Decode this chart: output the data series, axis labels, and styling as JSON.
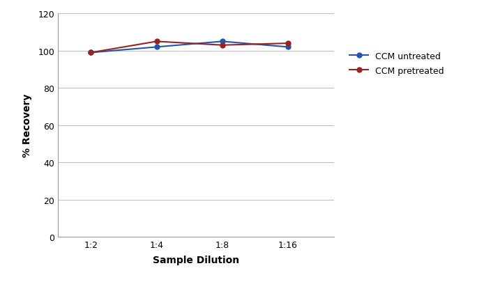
{
  "x_labels": [
    "1:2",
    "1:4",
    "1:8",
    "1:16"
  ],
  "x_values": [
    1,
    2,
    3,
    4
  ],
  "ccm_untreated": [
    99,
    102,
    105,
    102
  ],
  "ccm_pretreated": [
    99,
    105,
    103,
    104
  ],
  "line_color_untreated": "#2255AA",
  "line_color_pretreated": "#992222",
  "ylabel": "% Recovery",
  "xlabel": "Sample Dilution",
  "ylim": [
    0,
    120
  ],
  "yticks": [
    0,
    20,
    40,
    60,
    80,
    100,
    120
  ],
  "legend_labels": [
    "CCM untreated",
    "CCM pretreated"
  ],
  "background_color": "#ffffff",
  "grid_color": "#c0c0c0",
  "spine_color": "#999999"
}
